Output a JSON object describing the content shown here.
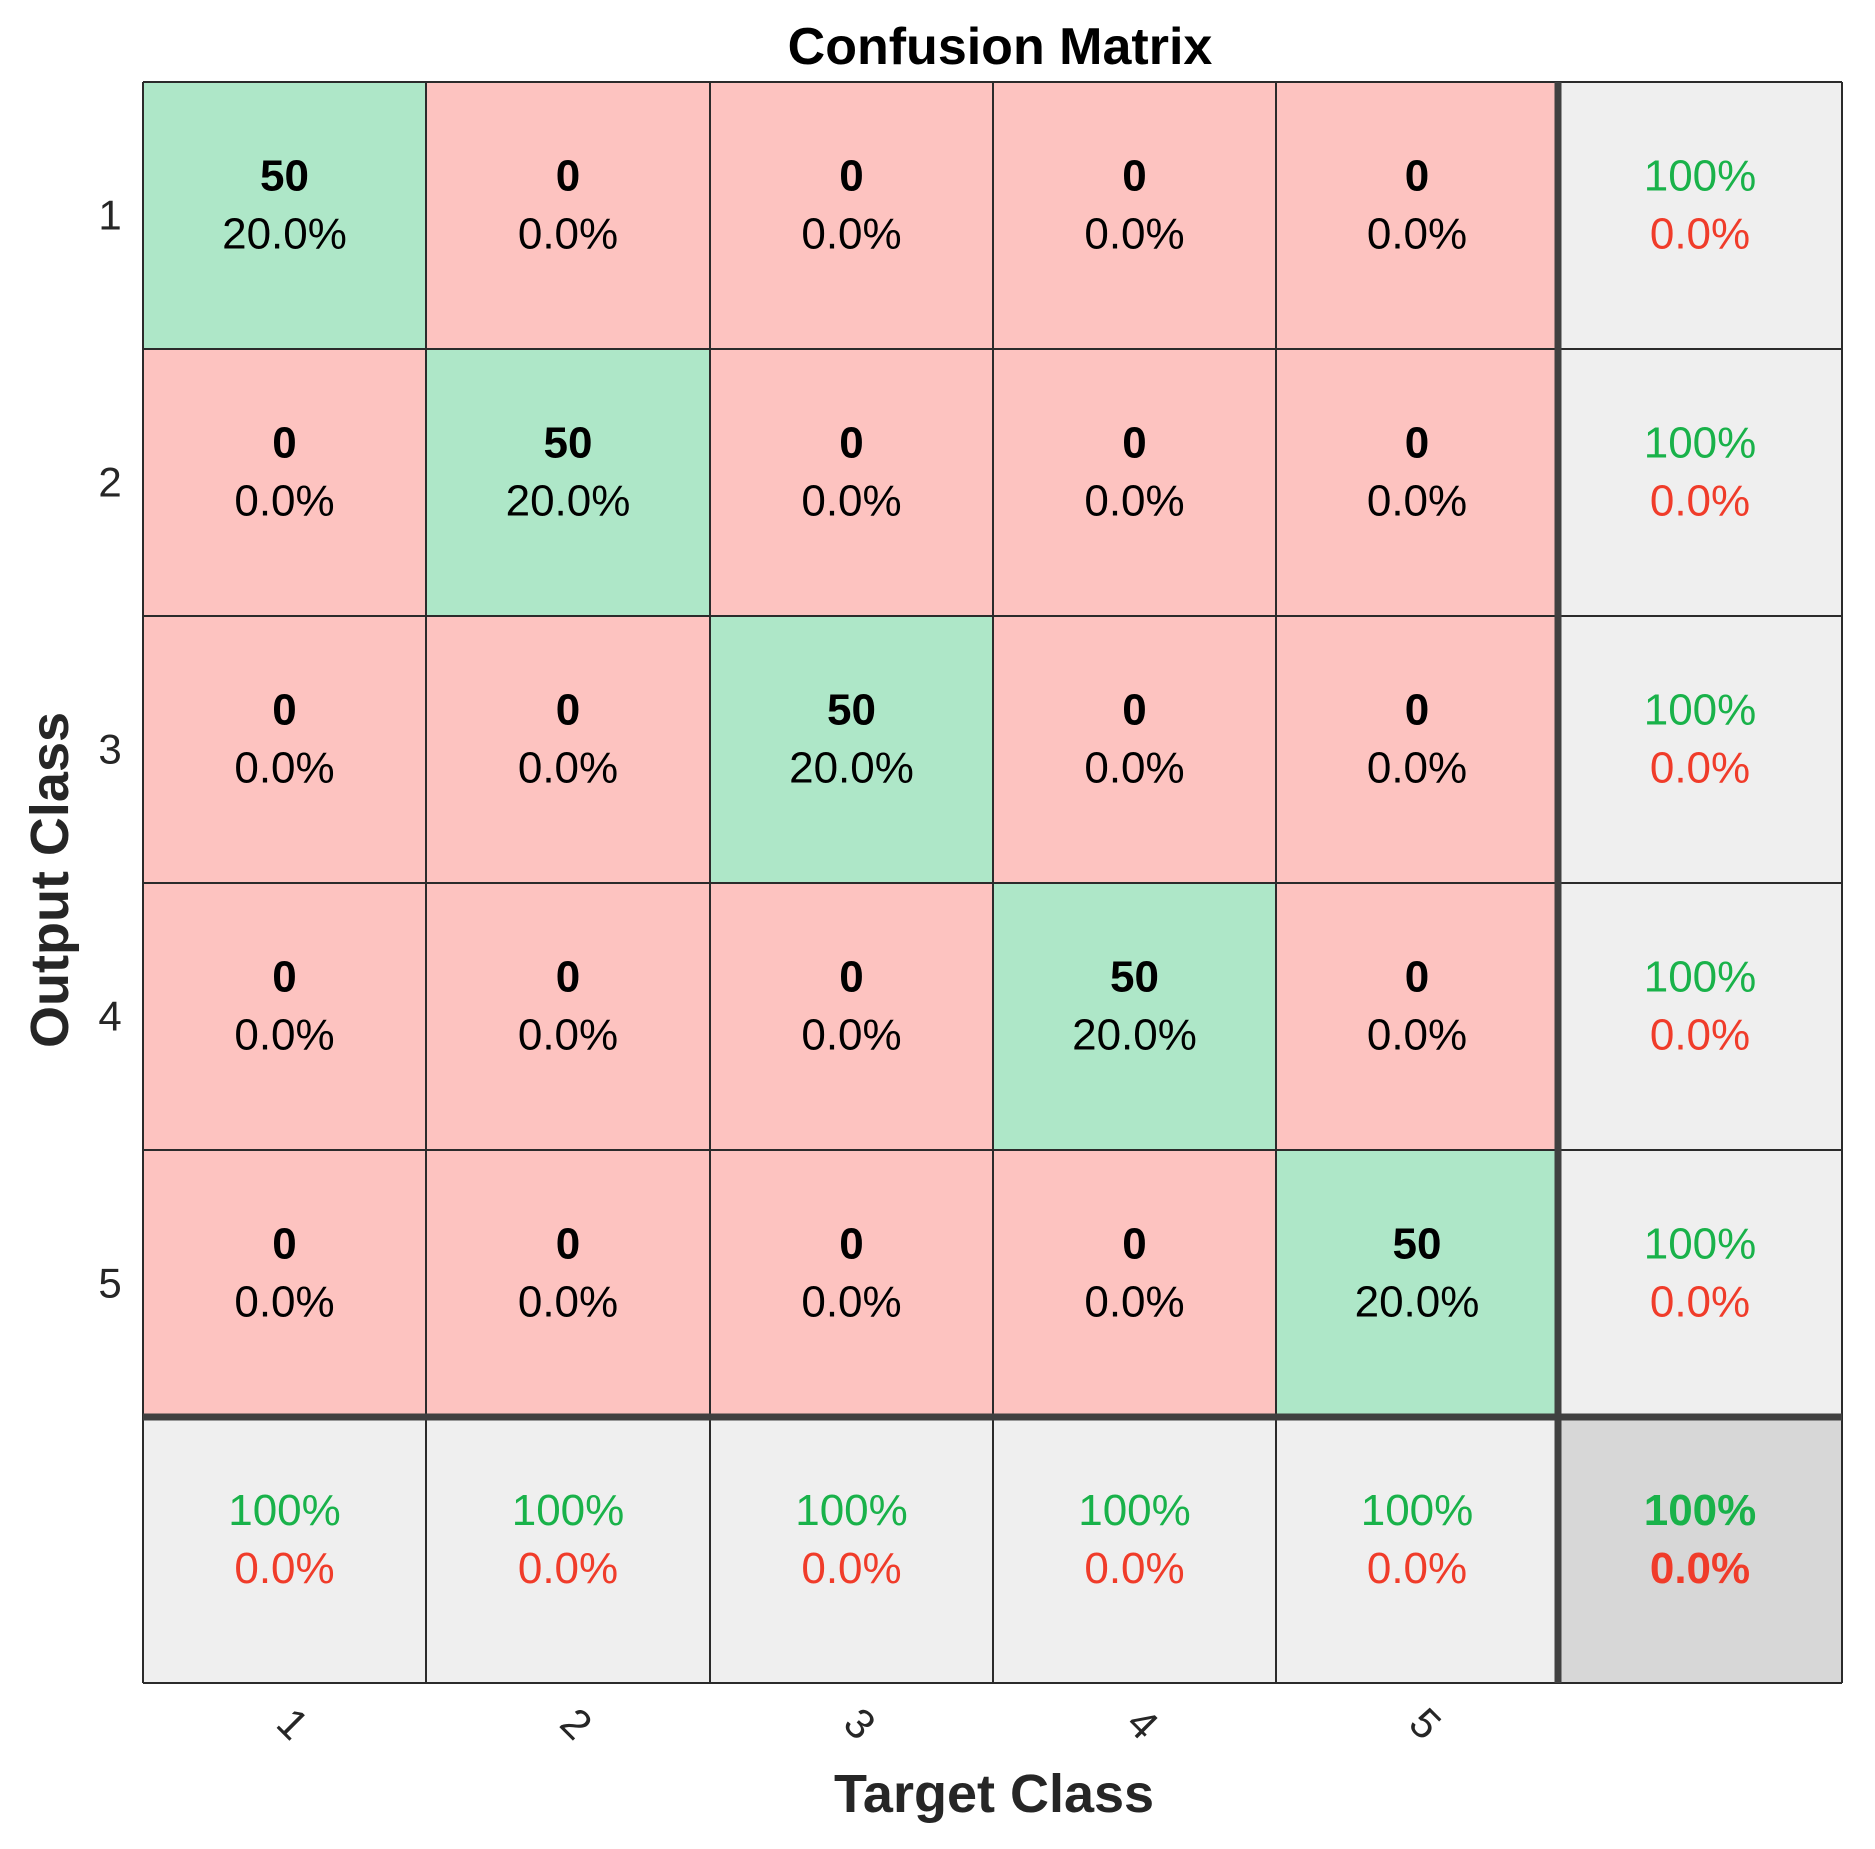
{
  "chart_data": {
    "type": "heatmap",
    "title": "Confusion Matrix",
    "xlabel": "Target Class",
    "ylabel": "Output Class",
    "x_tick_labels": [
      "1",
      "2",
      "3",
      "4",
      "5"
    ],
    "y_tick_labels": [
      "1",
      "2",
      "3",
      "4",
      "5"
    ],
    "matrix": [
      [
        {
          "count": "50",
          "percent": "20.0%"
        },
        {
          "count": "0",
          "percent": "0.0%"
        },
        {
          "count": "0",
          "percent": "0.0%"
        },
        {
          "count": "0",
          "percent": "0.0%"
        },
        {
          "count": "0",
          "percent": "0.0%"
        }
      ],
      [
        {
          "count": "0",
          "percent": "0.0%"
        },
        {
          "count": "50",
          "percent": "20.0%"
        },
        {
          "count": "0",
          "percent": "0.0%"
        },
        {
          "count": "0",
          "percent": "0.0%"
        },
        {
          "count": "0",
          "percent": "0.0%"
        }
      ],
      [
        {
          "count": "0",
          "percent": "0.0%"
        },
        {
          "count": "0",
          "percent": "0.0%"
        },
        {
          "count": "50",
          "percent": "20.0%"
        },
        {
          "count": "0",
          "percent": "0.0%"
        },
        {
          "count": "0",
          "percent": "0.0%"
        }
      ],
      [
        {
          "count": "0",
          "percent": "0.0%"
        },
        {
          "count": "0",
          "percent": "0.0%"
        },
        {
          "count": "0",
          "percent": "0.0%"
        },
        {
          "count": "50",
          "percent": "20.0%"
        },
        {
          "count": "0",
          "percent": "0.0%"
        }
      ],
      [
        {
          "count": "0",
          "percent": "0.0%"
        },
        {
          "count": "0",
          "percent": "0.0%"
        },
        {
          "count": "0",
          "percent": "0.0%"
        },
        {
          "count": "0",
          "percent": "0.0%"
        },
        {
          "count": "50",
          "percent": "20.0%"
        }
      ]
    ],
    "row_summary": [
      {
        "correct": "100%",
        "error": "0.0%"
      },
      {
        "correct": "100%",
        "error": "0.0%"
      },
      {
        "correct": "100%",
        "error": "0.0%"
      },
      {
        "correct": "100%",
        "error": "0.0%"
      },
      {
        "correct": "100%",
        "error": "0.0%"
      }
    ],
    "column_summary": [
      {
        "correct": "100%",
        "error": "0.0%"
      },
      {
        "correct": "100%",
        "error": "0.0%"
      },
      {
        "correct": "100%",
        "error": "0.0%"
      },
      {
        "correct": "100%",
        "error": "0.0%"
      },
      {
        "correct": "100%",
        "error": "0.0%"
      }
    ],
    "overall": {
      "correct": "100%",
      "error": "0.0%"
    },
    "grid": true,
    "x_tick_rotation_deg": 45
  },
  "colors": {
    "diagonal_cell": "#aee7c8",
    "off_diagonal_cell": "#fdc3c0",
    "summary_cell": "#efefef",
    "overall_cell": "#d7d7d7",
    "correct_text": "#19b24a",
    "error_text": "#f03c2a",
    "grid_line": "#2b2b2b",
    "separator_line": "#404040"
  }
}
